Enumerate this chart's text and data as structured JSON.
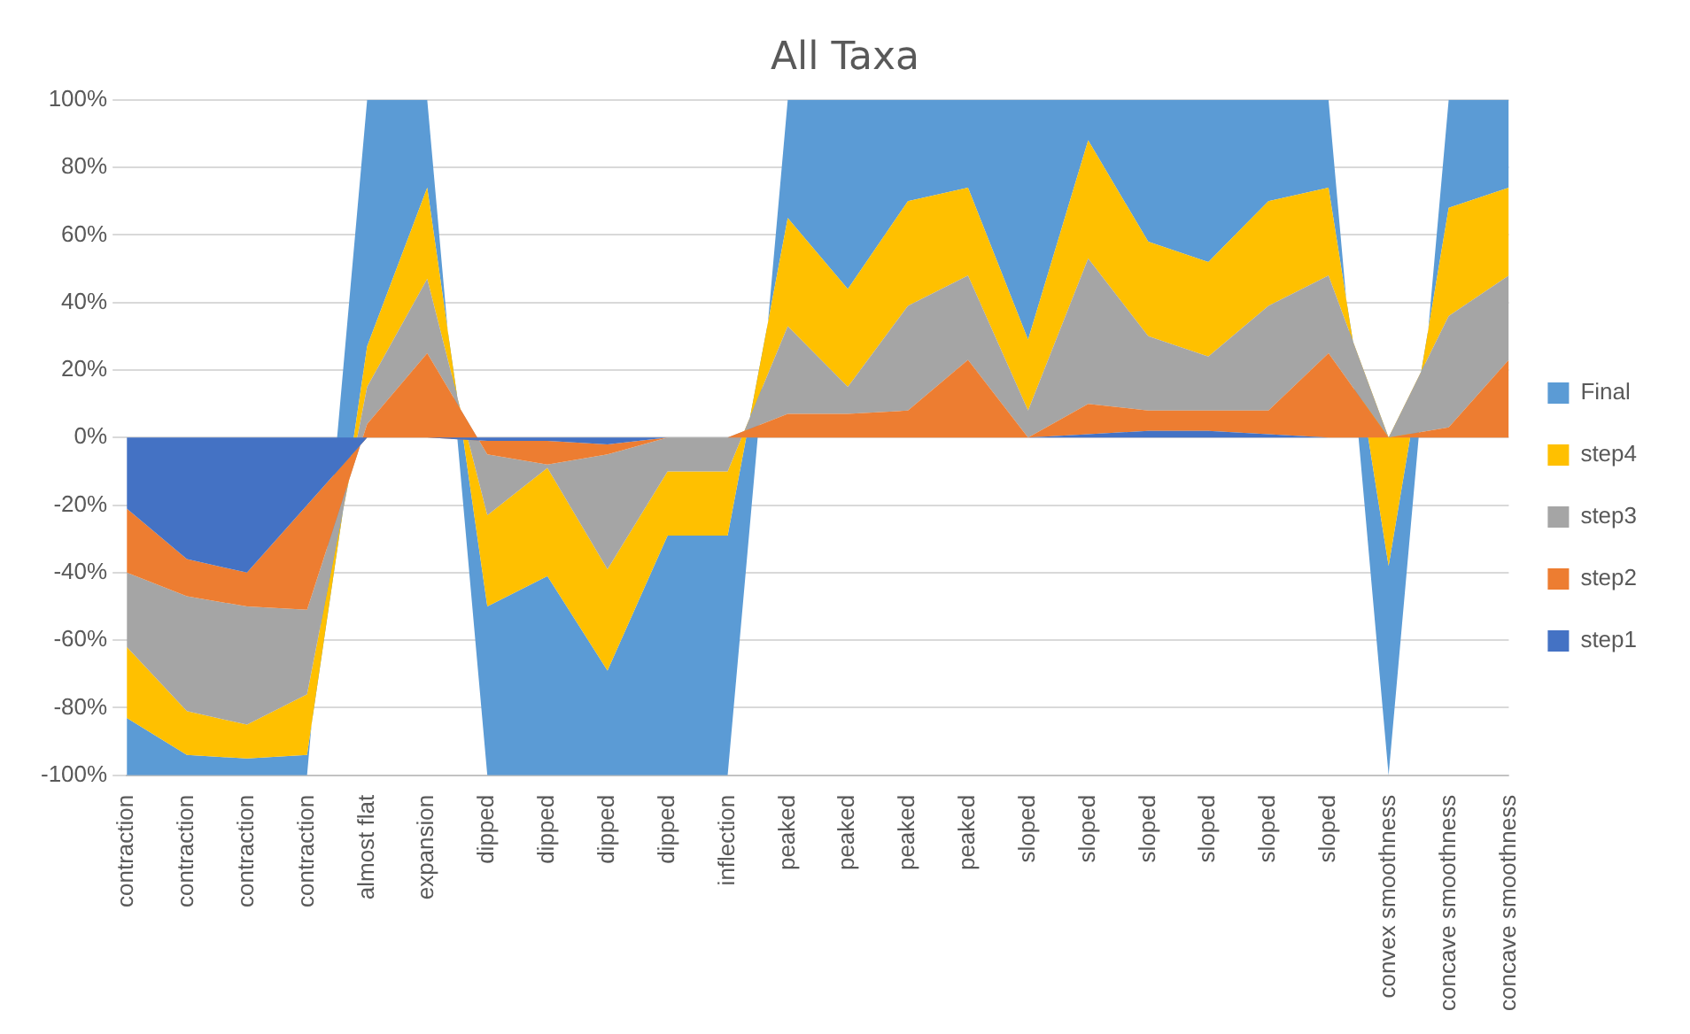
{
  "chart_data": {
    "type": "area",
    "title": "All Taxa",
    "stacked": true,
    "categories": [
      "contraction",
      "contraction",
      "contraction",
      "contraction",
      "almost flat",
      "expansion",
      "dipped",
      "dipped",
      "dipped",
      "dipped",
      "inflection",
      "peaked",
      "peaked",
      "peaked",
      "peaked",
      "sloped",
      "sloped",
      "sloped",
      "sloped",
      "sloped",
      "sloped",
      "convex smoothness",
      "concave smoothness",
      "concave smoothness"
    ],
    "series": [
      {
        "name": "step1",
        "color": "#4472c4",
        "values": [
          -21,
          -36,
          -40,
          -20,
          0,
          0,
          -1,
          -1,
          -2,
          0,
          0,
          0,
          0,
          0,
          0,
          0,
          1,
          2,
          2,
          1,
          0,
          0,
          0,
          0
        ]
      },
      {
        "name": "step2",
        "color": "#ed7d31",
        "values": [
          -19,
          -11,
          -10,
          -31,
          4,
          25,
          -4,
          -7,
          -3,
          0,
          0,
          7,
          7,
          8,
          23,
          0,
          9,
          6,
          6,
          7,
          25,
          0,
          3,
          23
        ]
      },
      {
        "name": "step3",
        "color": "#a5a5a5",
        "values": [
          -22,
          -34,
          -35,
          -25,
          11,
          22,
          -18,
          -1,
          -34,
          -10,
          -10,
          26,
          8,
          31,
          25,
          8,
          43,
          22,
          16,
          31,
          23,
          0,
          33,
          25
        ]
      },
      {
        "name": "step4",
        "color": "#ffc000",
        "values": [
          -21,
          -13,
          -10,
          -18,
          12,
          27,
          -27,
          -32,
          -30,
          -19,
          -19,
          32,
          29,
          31,
          26,
          21,
          35,
          28,
          28,
          31,
          26,
          -38,
          32,
          26
        ]
      },
      {
        "name": "Final",
        "color": "#5b9bd5",
        "values": [
          -17,
          -6,
          -5,
          -6,
          73,
          26,
          -50,
          -59,
          -31,
          -71,
          -71,
          35,
          56,
          30,
          26,
          71,
          12,
          42,
          48,
          30,
          26,
          -62,
          32,
          26
        ]
      }
    ],
    "ylim": [
      -100,
      100
    ],
    "yticks": [
      {
        "value": -100,
        "label": "-100%"
      },
      {
        "value": -80,
        "label": "-80%"
      },
      {
        "value": -60,
        "label": "-60%"
      },
      {
        "value": -40,
        "label": "-40%"
      },
      {
        "value": -20,
        "label": "-20%"
      },
      {
        "value": 0,
        "label": "0%"
      },
      {
        "value": 20,
        "label": "20%"
      },
      {
        "value": 40,
        "label": "40%"
      },
      {
        "value": 60,
        "label": "60%"
      },
      {
        "value": 80,
        "label": "80%"
      },
      {
        "value": 100,
        "label": "100%"
      }
    ],
    "grid": "y",
    "legend": "right"
  }
}
